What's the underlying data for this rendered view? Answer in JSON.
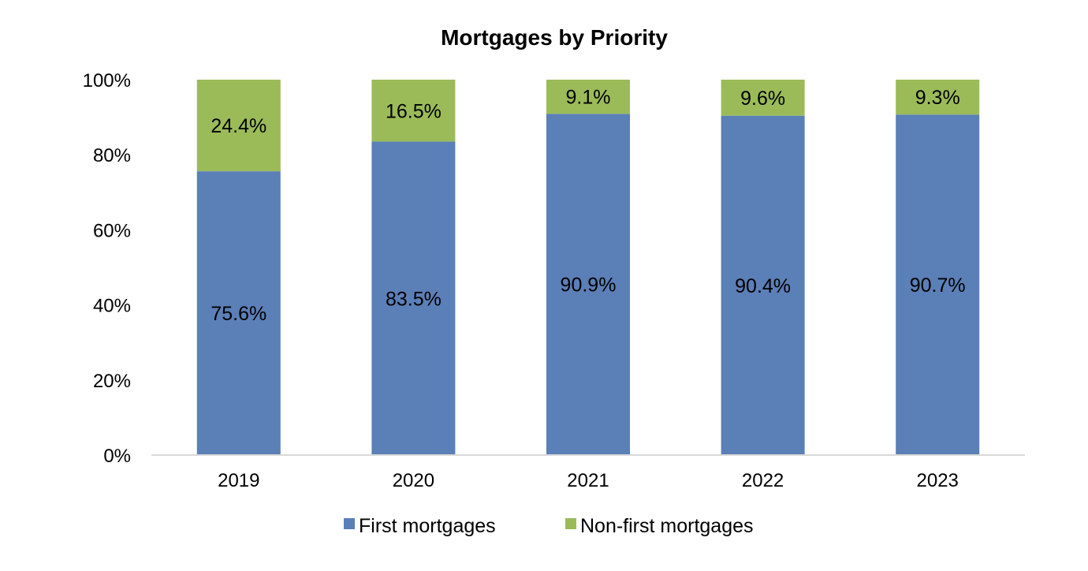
{
  "chart_data": {
    "type": "bar",
    "stacked": true,
    "percent": true,
    "title": "Mortgages by Priority",
    "xlabel": "",
    "ylabel": "",
    "ylim": [
      0,
      100
    ],
    "ytick_labels": [
      "0%",
      "20%",
      "40%",
      "60%",
      "80%",
      "100%"
    ],
    "categories": [
      "2019",
      "2020",
      "2021",
      "2022",
      "2023"
    ],
    "series": [
      {
        "name": "First mortgages",
        "color": "#5b7fb7",
        "values": [
          75.6,
          83.5,
          90.9,
          90.4,
          90.7
        ],
        "labels": [
          "75.6%",
          "83.5%",
          "90.9%",
          "90.4%",
          "90.7%"
        ]
      },
      {
        "name": "Non-first mortgages",
        "color": "#9bbb59",
        "values": [
          24.4,
          16.5,
          9.1,
          9.6,
          9.3
        ],
        "labels": [
          "24.4%",
          "16.5%",
          "9.1%",
          "9.6%",
          "9.3%"
        ]
      }
    ],
    "grid": false,
    "legend_position": "bottom"
  }
}
